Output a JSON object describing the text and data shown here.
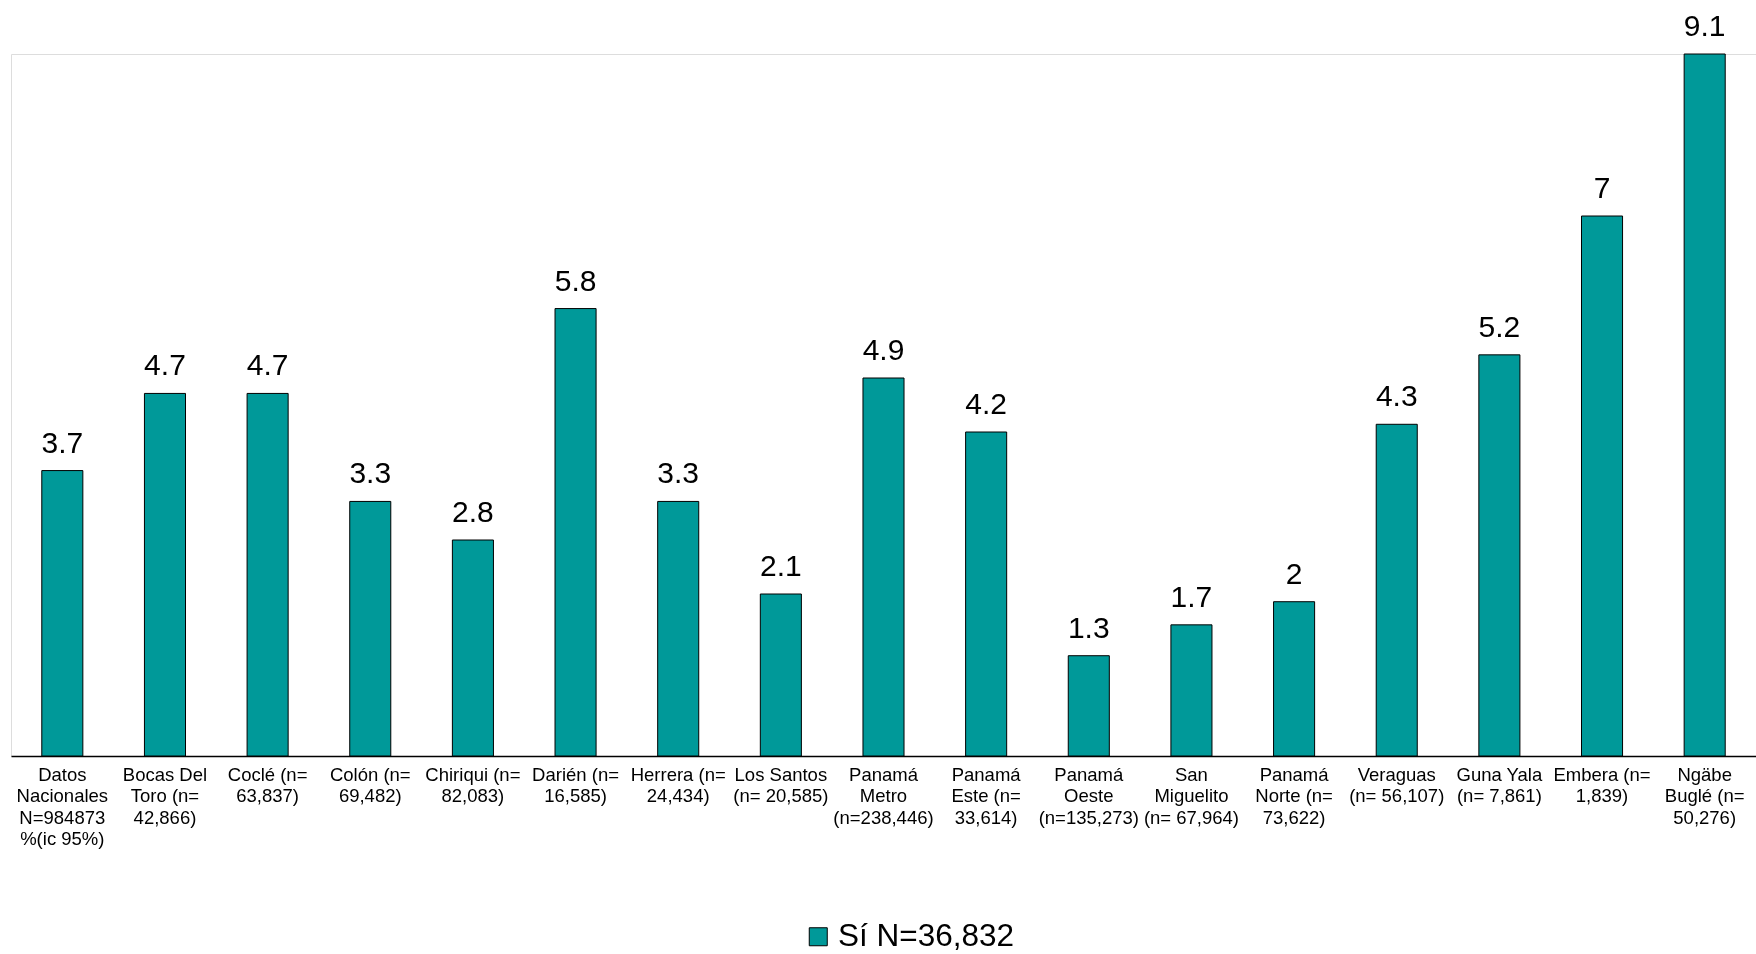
{
  "chart_data": {
    "type": "bar",
    "categories": [
      "Datos Nacionales N=984873 %(ic 95%)",
      "Bocas Del Toro (n= 42,866)",
      "Coclé (n= 63,837)",
      "Colón (n= 69,482)",
      "Chiriqui (n= 82,083)",
      "Darién (n= 16,585)",
      "Herrera (n= 24,434)",
      "Los Santos (n= 20,585)",
      "Panamá Metro (n=238,446)",
      "Panamá Este (n= 33,614)",
      "Panamá Oeste (n=135,273)",
      "San Miguelito (n= 67,964)",
      "Panamá Norte (n= 73,622)",
      "Veraguas (n= 56,107)",
      "Guna Yala (n= 7,861)",
      "Embera (n=  1,839)",
      "Ngäbe Buglé (n= 50,276)"
    ],
    "series": [
      {
        "name": "Sí N=36,832",
        "color": "#009999",
        "values": [
          3.7,
          4.7,
          4.7,
          3.3,
          2.8,
          5.8,
          3.3,
          2.1,
          4.9,
          4.2,
          1.3,
          1.7,
          2,
          4.3,
          5.2,
          7,
          9.1
        ]
      }
    ],
    "data_labels": true,
    "legend": "bottom"
  }
}
